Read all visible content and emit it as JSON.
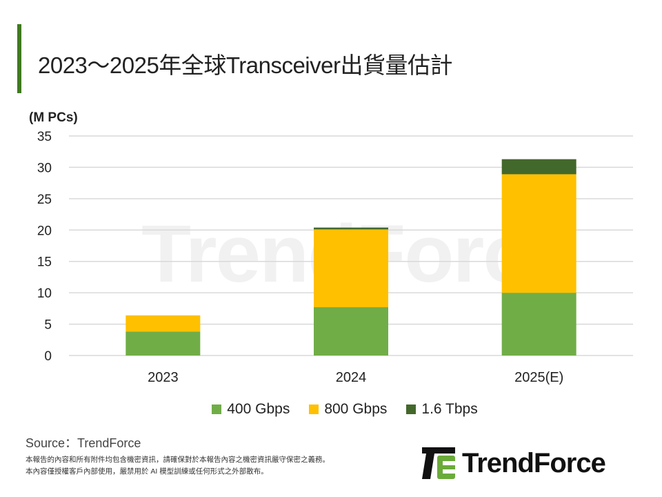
{
  "header": {
    "title": "2023～2025年全球Transceiver出貨量估計"
  },
  "chart_data": {
    "type": "bar",
    "stacked": true,
    "title": "2023～2025年全球Transceiver出貨量估計",
    "ylabel": "(M PCs)",
    "xlabel": "",
    "categories": [
      "2023",
      "2024",
      "2025(E)"
    ],
    "series": [
      {
        "name": "400 Gbps",
        "color": "#70ad47",
        "values": [
          3.8,
          7.7,
          10.0
        ]
      },
      {
        "name": "800 Gbps",
        "color": "#ffc000",
        "values": [
          2.6,
          12.4,
          18.9
        ]
      },
      {
        "name": "1.6 Tbps",
        "color": "#43682b",
        "values": [
          0,
          0.3,
          2.4
        ]
      }
    ],
    "ylim": [
      0,
      35
    ],
    "yticks": [
      0,
      5,
      10,
      15,
      20,
      25,
      30,
      35
    ],
    "grid": true,
    "legend": "bottom"
  },
  "footer": {
    "source": "Source：TrendForce",
    "note1": "本報告的內容和所有附件均包含機密資訊，請確保對於本報告內容之機密資訊嚴守保密之義務。",
    "note2": "本內容僅授權客戶內部使用，嚴禁用於 AI 模型訓練或任何形式之外部散布。"
  },
  "logo": {
    "text": "TrendForce"
  },
  "watermark": "TrendForce"
}
